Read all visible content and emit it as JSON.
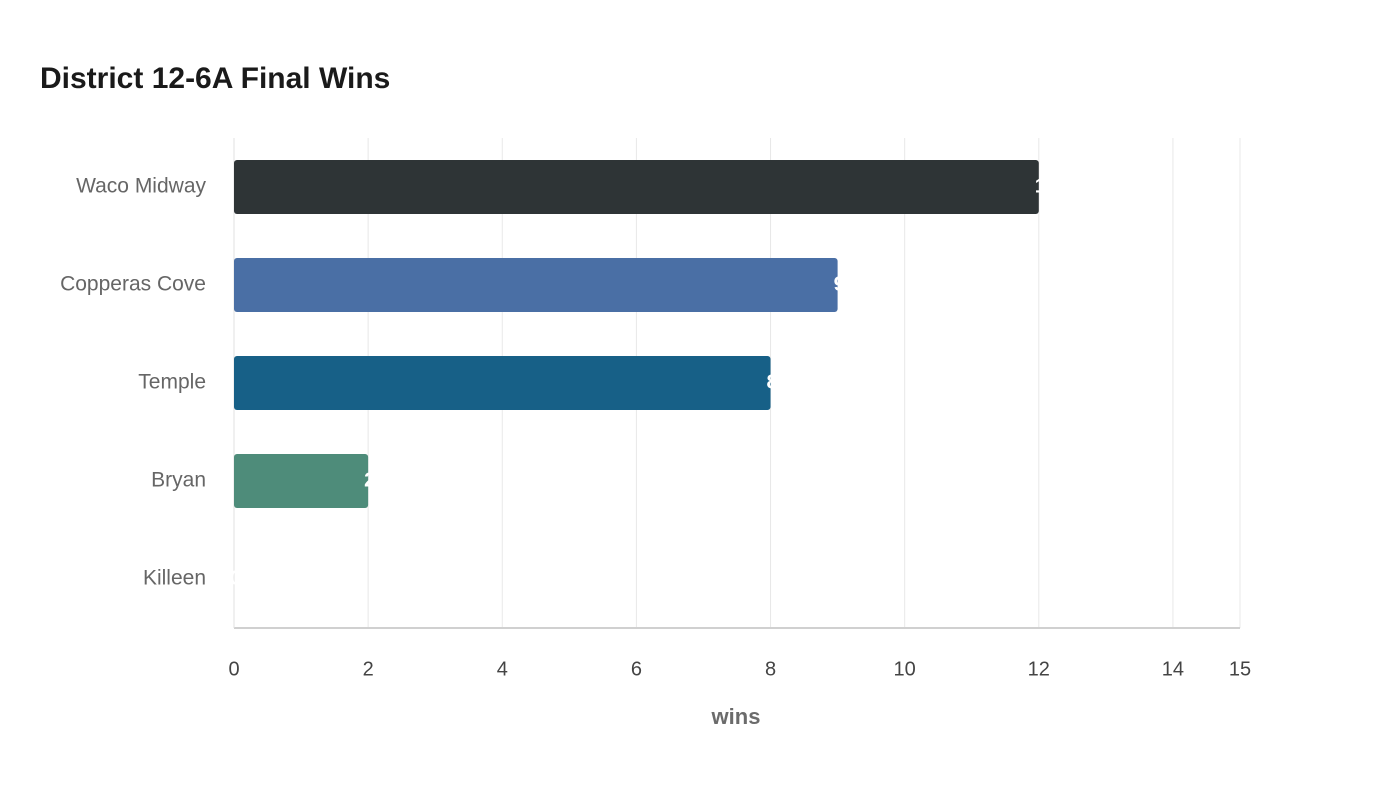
{
  "chart_data": {
    "type": "bar",
    "orientation": "horizontal",
    "title": "District 12-6A Final Wins",
    "x_label": "wins",
    "categories": [
      "Waco Midway",
      "Copperas Cove",
      "Temple",
      "Bryan",
      "Killeen"
    ],
    "values": [
      12,
      9,
      8,
      2,
      0
    ],
    "colors": [
      "#2e3436",
      "#4a6fa5",
      "#176087",
      "#4e8c7a",
      "#8a8a8a"
    ],
    "xlim": [
      0,
      15
    ],
    "xticks": [
      0,
      2,
      4,
      6,
      8,
      10,
      12,
      14,
      15
    ],
    "grid": true
  }
}
